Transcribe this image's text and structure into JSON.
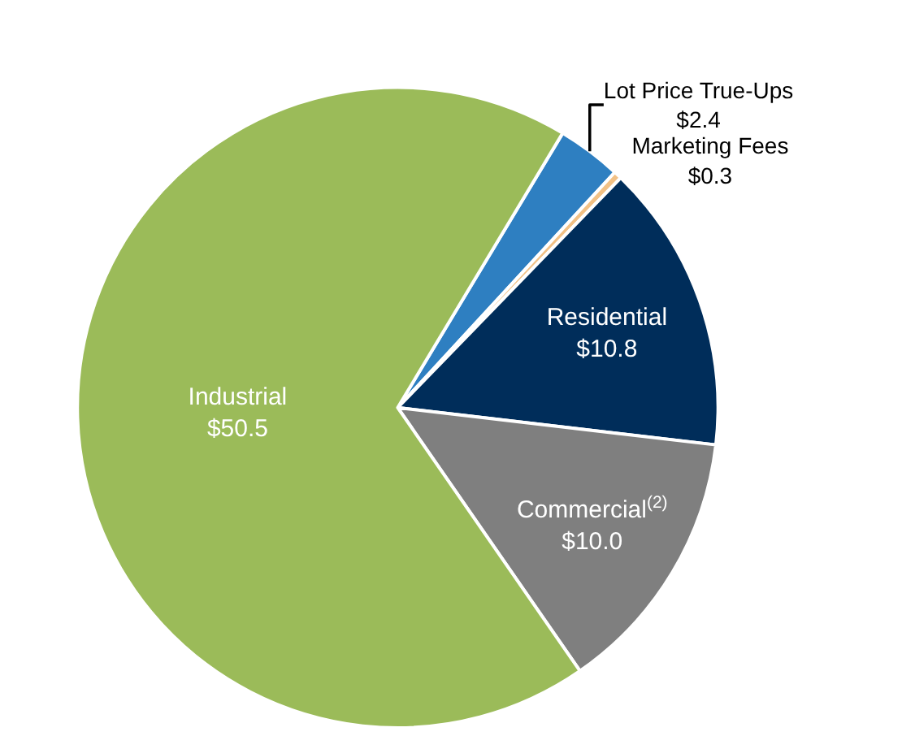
{
  "chart_data": {
    "type": "pie",
    "categories": [
      "Lot Price True-Ups",
      "Marketing Fees",
      "Residential",
      "Commercial$^{(2)}$",
      "Industrial"
    ],
    "values": [
      2.4,
      0.3,
      10.8,
      10.0,
      50.5
    ],
    "value_labels": [
      "$2.4",
      "$0.3",
      "$10.8",
      "$10.0",
      "$50.5"
    ],
    "colors": [
      "#2e7fc1",
      "#f2c185",
      "#002d5a",
      "#7f7f7f",
      "#9bbb59"
    ],
    "legend": false
  }
}
